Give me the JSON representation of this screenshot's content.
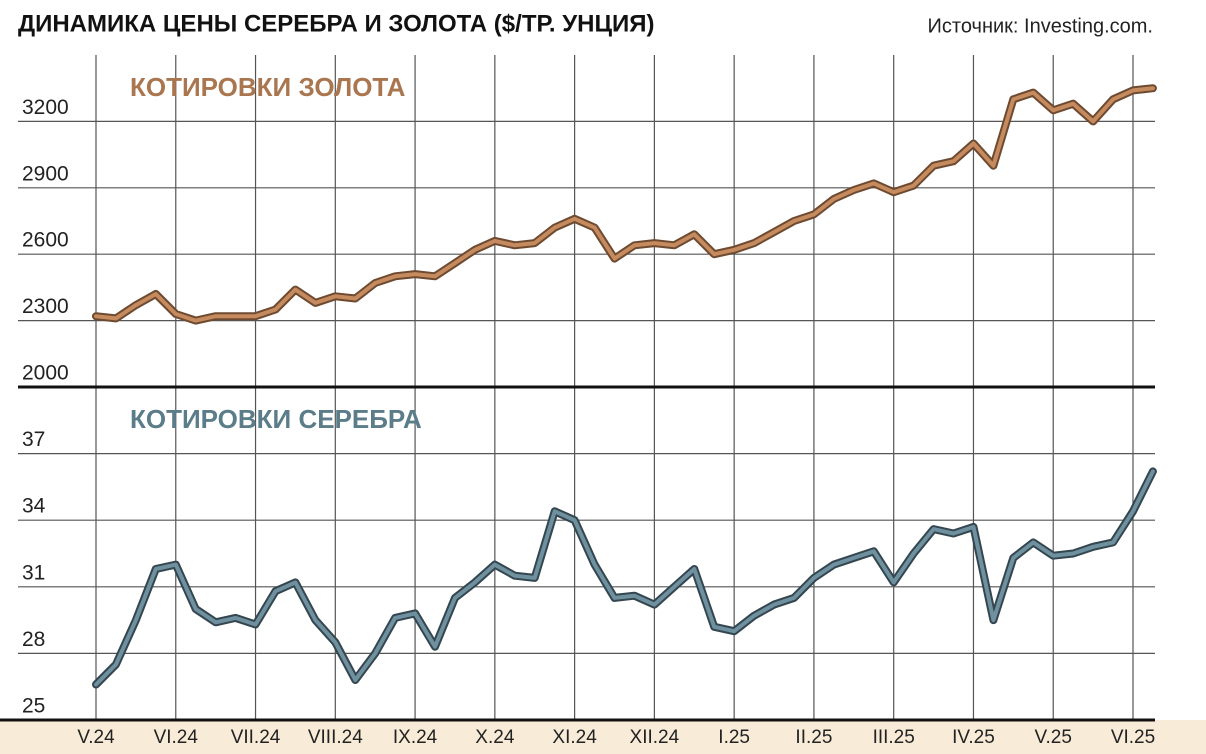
{
  "title": "ДИНАМИКА ЦЕНЫ СЕРЕБРА И ЗОЛОТА ($/ТР. УНЦИЯ)",
  "source": "Источник: Investing.com.",
  "chart_data": [
    {
      "type": "line",
      "title": "КОТИРОВКИ ЗОЛОТА",
      "color": "#c58b5f",
      "edge_color": "#6e4a30",
      "title_color": "#a9764f",
      "ylim": [
        2000,
        3500
      ],
      "yticks": [
        2000,
        2300,
        2600,
        2900,
        3200
      ],
      "grid": true,
      "values": [
        2320,
        2310,
        2370,
        2420,
        2330,
        2300,
        2320,
        2320,
        2320,
        2350,
        2440,
        2380,
        2410,
        2400,
        2470,
        2500,
        2510,
        2500,
        2560,
        2620,
        2660,
        2640,
        2650,
        2720,
        2760,
        2720,
        2580,
        2640,
        2650,
        2640,
        2690,
        2600,
        2620,
        2650,
        2700,
        2750,
        2780,
        2850,
        2890,
        2920,
        2880,
        2910,
        3000,
        3020,
        3100,
        3000,
        3300,
        3330,
        3250,
        3280,
        3200,
        3300,
        3340,
        3350
      ]
    },
    {
      "type": "line",
      "title": "КОТИРОВКИ СЕРЕБРА",
      "color": "#6f909e",
      "edge_color": "#34464f",
      "title_color": "#5b7c89",
      "ylim": [
        25,
        40
      ],
      "yticks": [
        25,
        28,
        31,
        34,
        37
      ],
      "grid": true,
      "categories": [
        "V.24",
        null,
        null,
        null,
        "VI.24",
        null,
        null,
        null,
        "VII.24",
        null,
        null,
        null,
        "VIII.24",
        null,
        null,
        null,
        "IX.24",
        null,
        null,
        null,
        "X.24",
        null,
        null,
        null,
        "XI.24",
        null,
        null,
        null,
        "XII.24",
        null,
        null,
        null,
        "I.25",
        null,
        null,
        null,
        "II.25",
        null,
        null,
        null,
        "III.25",
        null,
        null,
        null,
        "IV.25",
        null,
        null,
        null,
        "V.25",
        null,
        null,
        null,
        "VI.25",
        null
      ],
      "values": [
        26.6,
        27.5,
        29.5,
        31.8,
        32,
        30,
        29.4,
        29.6,
        29.3,
        30.8,
        31.2,
        29.5,
        28.5,
        26.8,
        28,
        29.6,
        29.8,
        28.3,
        30.5,
        31.2,
        32,
        31.5,
        31.4,
        34.4,
        34,
        32,
        30.5,
        30.6,
        30.2,
        31,
        31.8,
        29.2,
        29,
        29.7,
        30.2,
        30.5,
        31.4,
        32,
        32.3,
        32.6,
        31.2,
        32.5,
        33.6,
        33.4,
        33.7,
        29.5,
        32.3,
        33,
        32.4,
        32.5,
        32.8,
        33,
        34.4,
        36.2
      ]
    }
  ]
}
